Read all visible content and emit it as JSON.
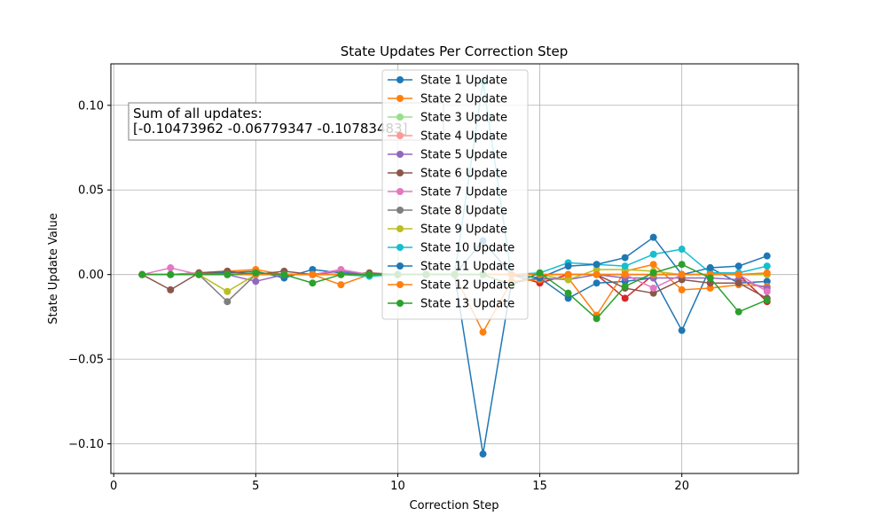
{
  "chart_data": {
    "type": "line",
    "title": "State Updates Per Correction Step",
    "xlabel": "Correction Step",
    "ylabel": "State Update Value",
    "xlim": [
      -0.1,
      24.1
    ],
    "ylim": [
      -0.1175,
      0.1245
    ],
    "xticks": [
      0,
      5,
      10,
      15,
      20
    ],
    "yticks": [
      -0.1,
      -0.05,
      0.0,
      0.05,
      0.1
    ],
    "ytick_labels": [
      "−0.10",
      "−0.05",
      "0.00",
      "0.05",
      "0.10"
    ],
    "grid": true,
    "legend_position": "upper center",
    "annotation": {
      "line1": "Sum of all updates:",
      "line2": "[-0.10473962 -0.06779347 -0.10783483]"
    },
    "x": [
      1,
      2,
      3,
      4,
      5,
      6,
      7,
      8,
      9,
      10,
      11,
      12,
      13,
      14,
      15,
      16,
      17,
      18,
      19,
      20,
      21,
      22,
      23
    ],
    "series": [
      {
        "name": "State 1 Update",
        "color": "#1f77b4",
        "values": [
          0,
          0,
          0.001,
          0.001,
          0.002,
          -0.002,
          0.003,
          0.001,
          0,
          0,
          0,
          0,
          -0.106,
          -0.005,
          -0.002,
          -0.014,
          -0.005,
          -0.004,
          -0.002,
          -0.033,
          0.004,
          -0.005,
          -0.004
        ]
      },
      {
        "name": "State 2 Update",
        "color": "#ff7f0e",
        "values": [
          0,
          0,
          0.001,
          0.002,
          0.003,
          0,
          0,
          -0.006,
          0,
          0,
          0,
          0,
          -0.034,
          -0.004,
          -0.003,
          -0.002,
          -0.024,
          0.002,
          0.006,
          -0.009,
          -0.008,
          -0.006,
          -0.007
        ]
      },
      {
        "name": "State 3 Update",
        "color": "#98df8a",
        "values": [
          0,
          0,
          0,
          0,
          0,
          0,
          0,
          0,
          0,
          0,
          0,
          0,
          0,
          0,
          0,
          0,
          0,
          0,
          0,
          0,
          0,
          0,
          0
        ]
      },
      {
        "name": "State 4 Update",
        "color": "#ff9896",
        "values": [
          0,
          0,
          0,
          0,
          0,
          0,
          0,
          0,
          0,
          0,
          0,
          0,
          0,
          0,
          0,
          0,
          0,
          0,
          0,
          0,
          0,
          0,
          0
        ]
      },
      {
        "name": "State 5 Update",
        "color": "#9467bd",
        "values": [
          0,
          0,
          0,
          0,
          -0.004,
          0,
          0,
          0.002,
          0,
          0,
          0,
          0,
          0,
          0,
          -0.002,
          -0.003,
          0,
          -0.002,
          -0.002,
          -0.002,
          -0.002,
          -0.003,
          -0.008
        ]
      },
      {
        "name": "State 6 Update",
        "color": "#8c564b",
        "values": [
          0,
          -0.009,
          0.001,
          0.002,
          0,
          0.002,
          0,
          0,
          0.001,
          0,
          0,
          0,
          0,
          0,
          0,
          0,
          0,
          -0.008,
          -0.011,
          -0.003,
          -0.005,
          -0.005,
          -0.014
        ]
      },
      {
        "name": "State 7 Update",
        "color": "#e377c2",
        "values": [
          0,
          0.004,
          0,
          0,
          0,
          0,
          0,
          0.003,
          0,
          0,
          0,
          0,
          0,
          0,
          0,
          0,
          0,
          0,
          -0.008,
          0,
          0,
          0,
          -0.01
        ]
      },
      {
        "name": "State 8 Update",
        "color": "#7f7f7f",
        "values": [
          0,
          0,
          0,
          -0.016,
          0,
          0,
          0,
          0,
          0,
          0,
          0,
          0,
          0,
          0,
          0,
          0,
          0,
          0,
          0,
          0,
          0,
          0,
          0
        ]
      },
      {
        "name": "State 9 Update",
        "color": "#bcbd22",
        "values": [
          0,
          0,
          0,
          -0.01,
          0,
          0,
          0,
          0,
          0,
          0,
          0,
          0,
          0,
          0,
          0,
          -0.003,
          0.003,
          0.003,
          0.002,
          0,
          0,
          0,
          0
        ]
      },
      {
        "name": "State 10 Update",
        "color": "#17becf",
        "values": [
          0,
          0,
          0,
          0,
          0,
          0,
          0,
          0,
          -0.001,
          0,
          0,
          0,
          0.114,
          0,
          0.001,
          0.007,
          0.006,
          0.005,
          0.012,
          0.015,
          0.001,
          0.001,
          0.005
        ]
      },
      {
        "name": "State 11 Update",
        "color": "#1f77b4",
        "values": [
          0,
          0,
          0,
          0,
          0,
          0,
          0,
          0,
          0,
          0,
          0,
          0,
          0.02,
          0,
          -0.002,
          0.005,
          0.006,
          0.01,
          0.022,
          0,
          0.004,
          0.005,
          0.011
        ]
      },
      {
        "name": "State 12 Update",
        "color": "#ff7f0e",
        "values": [
          0,
          0,
          0,
          0,
          0,
          0,
          0,
          0,
          0,
          0,
          0,
          0,
          0,
          0,
          0,
          0,
          0,
          0,
          0,
          0,
          0,
          0,
          0.001
        ]
      },
      {
        "name": "State 13 Update",
        "color": "#2ca02c",
        "values": [
          0,
          0,
          0,
          0,
          0.001,
          0,
          -0.005,
          0,
          0,
          0,
          0,
          0,
          0,
          -0.006,
          0.001,
          -0.011,
          -0.026,
          -0.007,
          0.001,
          0.006,
          -0.002,
          -0.022,
          -0.015
        ]
      }
    ],
    "overlay_series": [
      {
        "color": "#d62728",
        "values": [
          0,
          0,
          0,
          0,
          0,
          0,
          0,
          0,
          0,
          0,
          0,
          0,
          0,
          0,
          -0.005,
          0,
          0,
          -0.014,
          0,
          0,
          0,
          0,
          -0.016
        ]
      }
    ]
  }
}
